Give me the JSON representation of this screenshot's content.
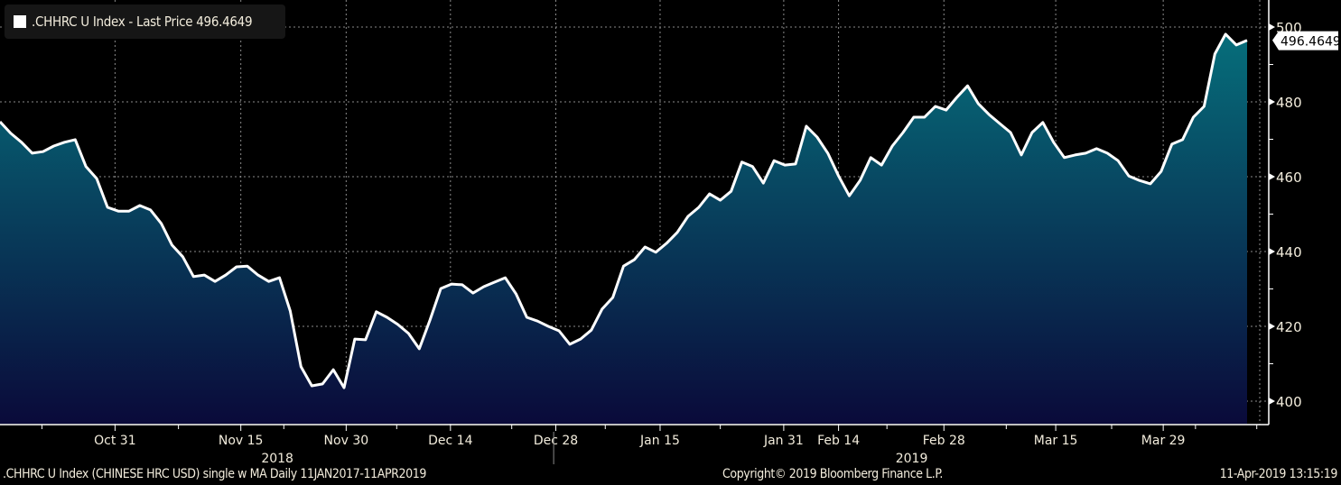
{
  "legend": {
    "label": ".CHHRC U Index - Last Price 496.4649",
    "swatch_color": "#ffffff"
  },
  "footer": {
    "left": ".CHHRC U Index (CHINESE HRC USD) single w MA  Daily 11JAN2017-11APR2019",
    "center": "Copyright© 2019 Bloomberg Finance L.P.",
    "right": "11-Apr-2019 13:15:19"
  },
  "chart_data": {
    "type": "area",
    "title": ".CHHRC U Index - Last Price",
    "series": [
      {
        "name": ".CHHRC U Index",
        "values": [
          474.7,
          471.6,
          469.2,
          466.3,
          466.7,
          468.2,
          469.2,
          469.9,
          462.7,
          459.5,
          451.8,
          450.8,
          450.8,
          452.3,
          451.1,
          447.5,
          441.7,
          438.6,
          433.3,
          433.7,
          432,
          433.7,
          435.9,
          436.1,
          433.7,
          432,
          433,
          424.1,
          409.2,
          404.1,
          404.6,
          408.4,
          403.6,
          416.6,
          416.4,
          423.9,
          422.4,
          420.5,
          418.1,
          414,
          421.7,
          430.1,
          431.3,
          431.1,
          428.9,
          430.6,
          431.8,
          433,
          428.7,
          422.4,
          421.4,
          420,
          418.8,
          415.2,
          416.6,
          419,
          424.6,
          427.7,
          436.1,
          437.8,
          441.2,
          439.8,
          442.2,
          445.1,
          449.4,
          451.8,
          455.4,
          453.7,
          456.1,
          463.9,
          462.7,
          458.3,
          464.3,
          463.1,
          463.4,
          473.5,
          470.6,
          466.3,
          460.2,
          454.9,
          459,
          465.1,
          463.1,
          468.2,
          471.8,
          475.9,
          475.9,
          478.8,
          477.8,
          481.2,
          484.3,
          479.5,
          476.6,
          474.2,
          471.8,
          465.8,
          471.8,
          474.5,
          469.2,
          465.1,
          465.8,
          466.3,
          467.5,
          466.3,
          464.3,
          460.2,
          459,
          458.1,
          461.4,
          468.7,
          469.9,
          475.9,
          478.8,
          492.8,
          498.1,
          495.2,
          496.4649
        ]
      }
    ],
    "last_price_label": "496.4649",
    "ylim": [
      394,
      506
    ],
    "y_ticks": [
      "400",
      "420",
      "440",
      "460",
      "480",
      "500"
    ],
    "y_tick_values": [
      400,
      420,
      440,
      460,
      480,
      500
    ],
    "y_minor_tick_values": [
      410,
      430,
      450,
      470,
      490
    ],
    "x_ticks": [
      {
        "label": "Oct 31",
        "index": 10.7
      },
      {
        "label": "Nov 15",
        "index": 22.4
      },
      {
        "label": "Nov 30",
        "index": 32.2
      },
      {
        "label": "Dec 14",
        "index": 41.9
      },
      {
        "label": "Dec 28",
        "index": 51.7
      },
      {
        "label": "Jan 15",
        "index": 61.4
      },
      {
        "label": "Jan 31",
        "index": 72.9
      },
      {
        "label": "Feb 14",
        "index": 78.0
      },
      {
        "label": "Feb 28",
        "index": 87.8
      },
      {
        "label": "Mar 15",
        "index": 98.2
      },
      {
        "label": "Mar 29",
        "index": 108.2
      }
    ],
    "x_minor_ticks": [
      3.9,
      16.6,
      26.4,
      36.9,
      47.6,
      56.3,
      67.0,
      82.5,
      93.6,
      103.4,
      111.2,
      116.9
    ],
    "x_year_labels": [
      {
        "label": "2018",
        "index": 25.8
      },
      {
        "label": "2019",
        "index": 84.8
      }
    ],
    "year_divider_index": 51.5,
    "grid": true,
    "colors": {
      "line": "#ffffff",
      "fill_top": "#06707c",
      "fill_bottom": "#0a0a3a",
      "grid": "#8a8a8a",
      "axis": "#ffffff"
    }
  }
}
